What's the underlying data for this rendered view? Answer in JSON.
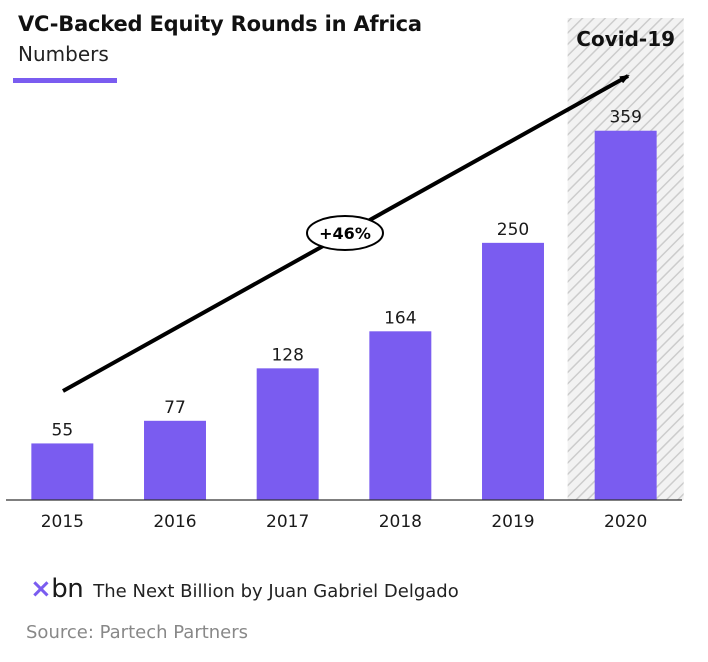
{
  "header": {
    "title": "VC-Backed Equity Rounds in Africa",
    "subtitle": "Numbers"
  },
  "colors": {
    "accent": "#7a5cf0",
    "bar": "#7a5cf0",
    "text": "#1a1a1a",
    "muted": "#888888",
    "hatch": "#cccccc"
  },
  "annotations": {
    "highlight_label": "Covid-19",
    "highlight_category": "2020",
    "growth_label": "+46%"
  },
  "chart_data": {
    "type": "bar",
    "title": "VC-Backed Equity Rounds in Africa",
    "subtitle": "Numbers",
    "xlabel": "",
    "ylabel": "",
    "categories": [
      "2015",
      "2016",
      "2017",
      "2018",
      "2019",
      "2020"
    ],
    "values": [
      55,
      77,
      128,
      164,
      250,
      359
    ],
    "ylim": [
      0,
      400
    ],
    "grid": false,
    "legend": "none"
  },
  "footer": {
    "logo_x": "×",
    "logo_text": "bn",
    "credit": "The Next Billion by Juan Gabriel Delgado",
    "source": "Source: Partech Partners"
  }
}
